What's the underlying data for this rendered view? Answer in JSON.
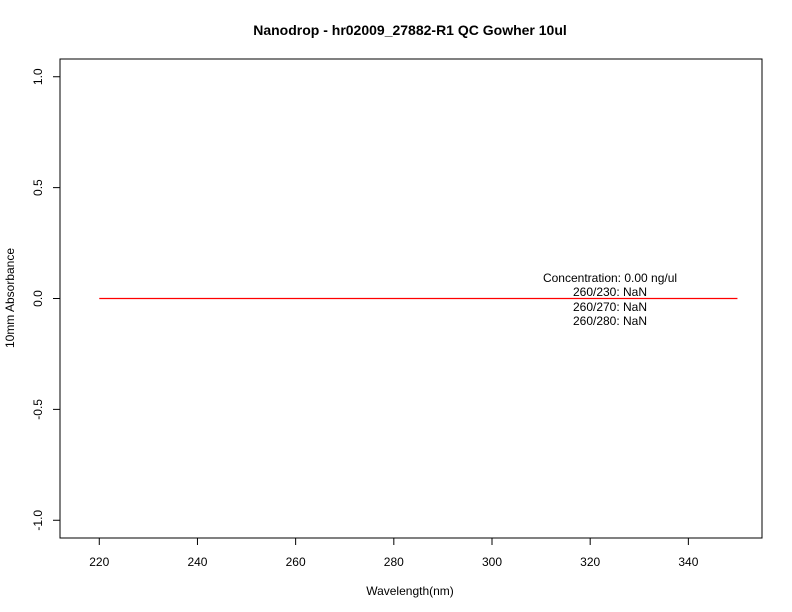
{
  "chart_data": {
    "type": "line",
    "title": "Nanodrop - hr02009_27882-R1 QC Gowher 10ul",
    "xlabel": "Wavelength(nm)",
    "ylabel": "10mm Absorbance",
    "xlim": [
      212,
      355
    ],
    "ylim": [
      -1.08,
      1.08
    ],
    "xticks": [
      220,
      240,
      260,
      280,
      300,
      320,
      340
    ],
    "yticks": [
      1.0,
      0.5,
      0.0,
      -0.5,
      -1.0
    ],
    "xtick_labels": [
      "220",
      "240",
      "260",
      "280",
      "300",
      "320",
      "340"
    ],
    "ytick_labels": [
      "1.0",
      "0.5",
      "0.0",
      "-0.5",
      "-1.0"
    ],
    "grid": false,
    "series": [
      {
        "color": "#ff0000",
        "x": [
          220,
          350
        ],
        "y": [
          0,
          0
        ]
      }
    ],
    "annotations": {
      "concentration": "Concentration: 0.00 ng/ul",
      "ratio_230": "260/230: NaN",
      "ratio_270": "260/270: NaN",
      "ratio_280": "260/280: NaN"
    }
  }
}
